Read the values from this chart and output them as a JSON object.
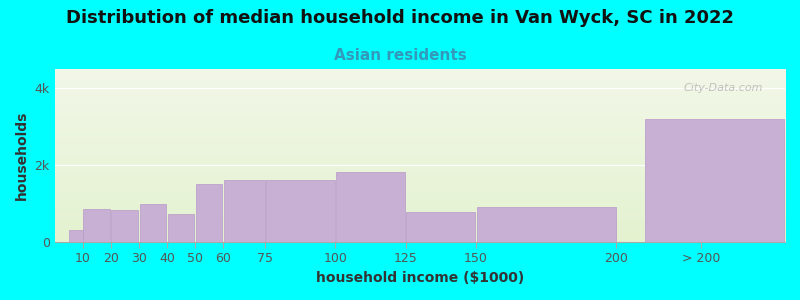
{
  "title": "Distribution of median household income in Van Wyck, SC in 2022",
  "subtitle": "Asian residents",
  "xlabel": "household income ($1000)",
  "ylabel": "households",
  "background_color": "#00FFFF",
  "bar_color": "#c8afd4",
  "bar_edge_color": "#b898c8",
  "categories": [
    "10",
    "20",
    "30",
    "40",
    "50",
    "60",
    "75",
    "100",
    "125",
    "150",
    "200",
    "> 200"
  ],
  "tick_positions": [
    10,
    20,
    30,
    40,
    50,
    60,
    75,
    100,
    125,
    150,
    200,
    230
  ],
  "bar_lefts": [
    5,
    10,
    20,
    30,
    40,
    50,
    60,
    75,
    100,
    125,
    150,
    210
  ],
  "bar_widths": [
    10,
    10,
    10,
    10,
    10,
    10,
    15,
    25,
    25,
    25,
    50,
    50
  ],
  "values": [
    300,
    850,
    830,
    980,
    720,
    1500,
    1620,
    1620,
    1820,
    780,
    920,
    3200
  ],
  "ylim": [
    0,
    4500
  ],
  "ytick_vals": [
    0,
    2000,
    4000
  ],
  "ytick_labels": [
    "0",
    "2k",
    "4k"
  ],
  "title_fontsize": 13,
  "subtitle_fontsize": 11,
  "axis_label_fontsize": 10,
  "tick_fontsize": 9,
  "watermark_text": "City-Data.com",
  "gradient_top": "#f2f7e8",
  "gradient_bottom": "#e4f2d0"
}
